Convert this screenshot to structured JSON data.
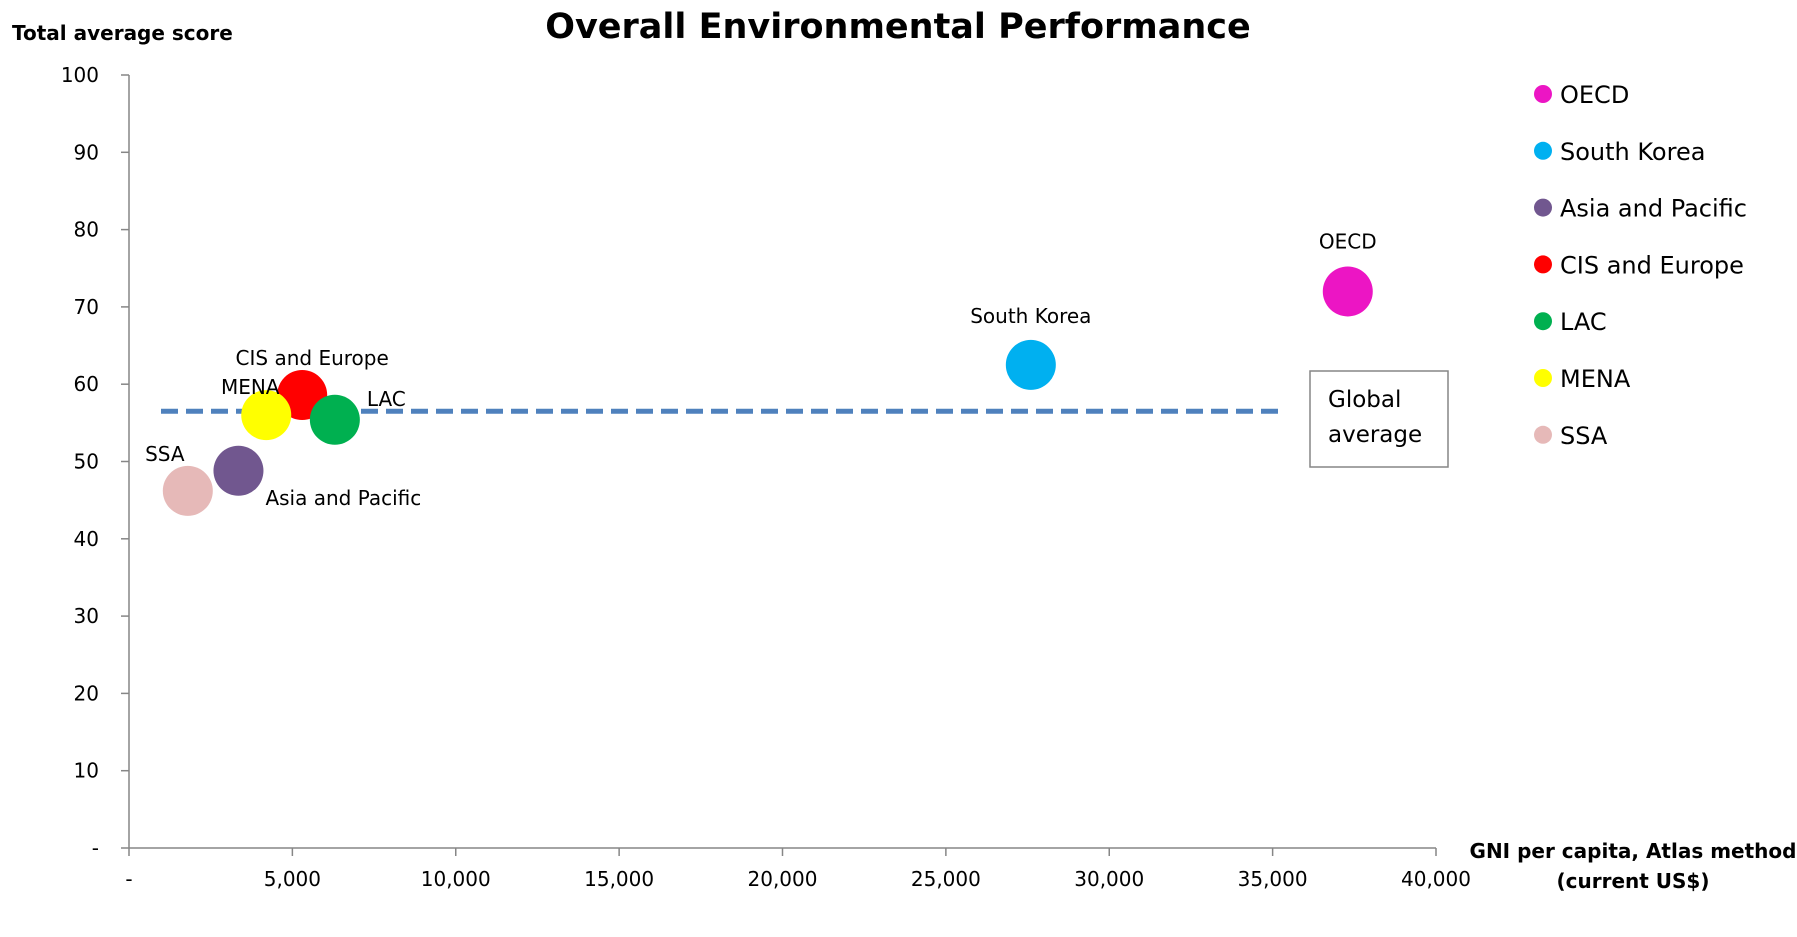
{
  "chart_data": {
    "type": "scatter",
    "title": "Overall Environmental Performance",
    "ylabel": "Total average score",
    "xlabel_lines": [
      "GNI per capita, Atlas method",
      "(current US$)"
    ],
    "xlim": [
      0,
      40000
    ],
    "ylim": [
      0,
      100
    ],
    "x_ticks": [
      0,
      5000,
      10000,
      15000,
      20000,
      25000,
      30000,
      35000,
      40000
    ],
    "x_tick_labels": [
      "-",
      "5,000",
      "10,000",
      "15,000",
      "20,000",
      "25,000",
      "30,000",
      "35,000",
      "40,000"
    ],
    "y_ticks": [
      0,
      10,
      20,
      30,
      40,
      50,
      60,
      70,
      80,
      90,
      100
    ],
    "y_tick_labels": [
      "-",
      "10",
      "20",
      "30",
      "40",
      "50",
      "60",
      "70",
      "80",
      "90",
      "100"
    ],
    "series": [
      {
        "name": "OECD",
        "label": "OECD",
        "x": 37300,
        "y": 72.0,
        "color": "#ec15c4"
      },
      {
        "name": "South Korea",
        "label": "South Korea",
        "x": 27600,
        "y": 62.5,
        "color": "#00b0f0"
      },
      {
        "name": "Asia and Pacific",
        "label": "Asia and Pacific",
        "x": 3350,
        "y": 48.8,
        "color": "#71578f"
      },
      {
        "name": "CIS and Europe",
        "label": "CIS and Europe",
        "x": 5300,
        "y": 58.6,
        "color": "#ff0000"
      },
      {
        "name": "LAC",
        "label": "LAC",
        "x": 6300,
        "y": 55.4,
        "color": "#00b050"
      },
      {
        "name": "MENA",
        "label": "MENA",
        "x": 4200,
        "y": 56.0,
        "color": "#ffff00"
      },
      {
        "name": "SSA",
        "label": "SSA",
        "x": 1800,
        "y": 46.2,
        "color": "#e6b9b8"
      }
    ],
    "reference_line": {
      "label_lines": [
        "Global",
        "average"
      ],
      "y": 56.5,
      "x_end": 35400,
      "color": "#4f81bd",
      "style": "dashed"
    },
    "legend_position": "right",
    "grid": false
  }
}
